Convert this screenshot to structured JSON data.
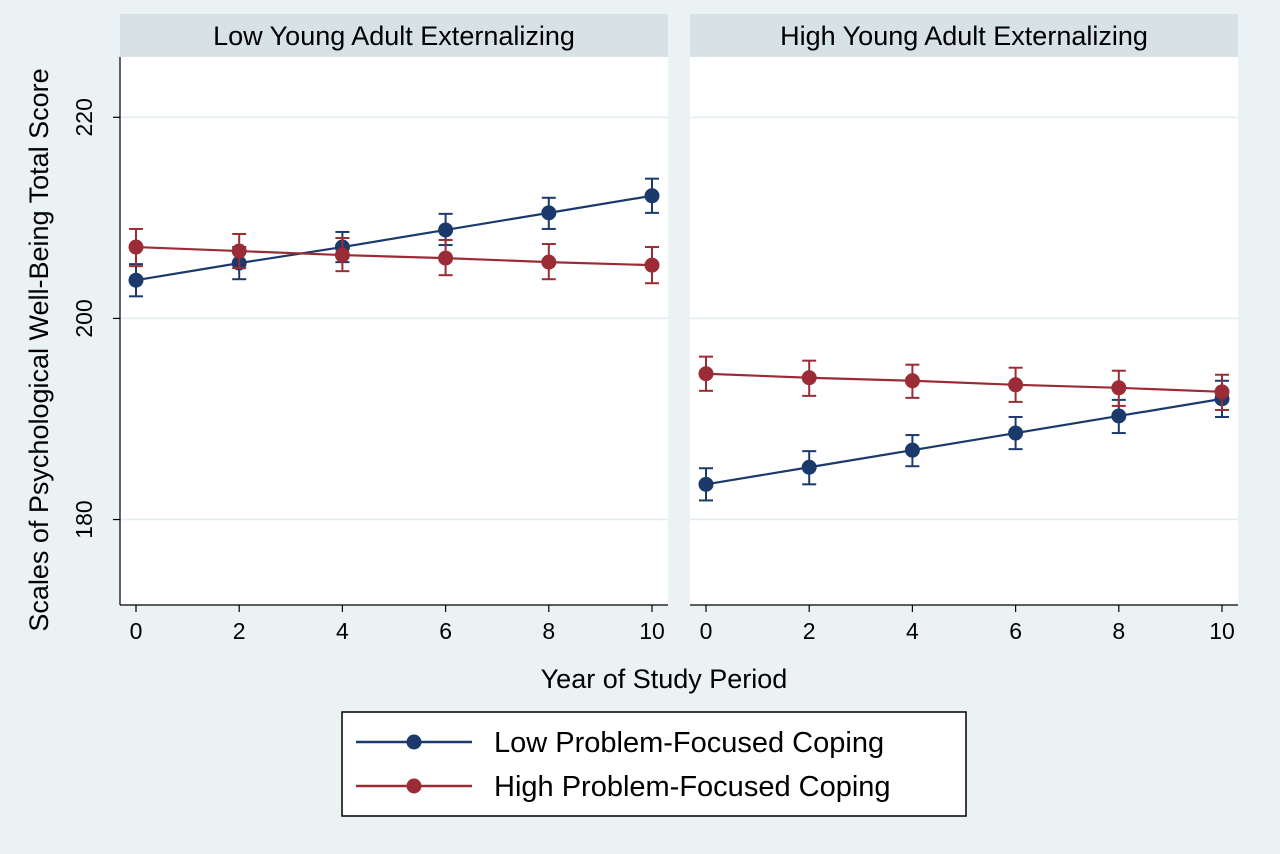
{
  "chart_data": {
    "type": "line",
    "xlabel": "Year of Study Period",
    "ylabel": "Scales of Psychological Well-Being Total Score",
    "xlim": [
      0,
      10
    ],
    "ylim": [
      171.5,
      226
    ],
    "x_ticks": [
      0,
      2,
      4,
      6,
      8,
      10
    ],
    "y_ticks": [
      180,
      200,
      220
    ],
    "grid": true,
    "legend_position": "bottom",
    "error_bars": true,
    "colors": {
      "Low Problem-Focused Coping": "#1b3a6b",
      "High Problem-Focused Coping": "#9b2c35"
    },
    "panels": [
      {
        "title": "Low Young Adult Externalizing",
        "x": [
          0,
          2,
          4,
          6,
          8,
          10
        ],
        "series": [
          {
            "name": "Low Problem-Focused Coping",
            "values": [
              203.8,
              205.5,
              207.1,
              208.8,
              210.5,
              212.2
            ],
            "ci_low": [
              202.2,
              203.9,
              205.6,
              207.3,
              208.9,
              210.5
            ],
            "ci_high": [
              205.4,
              207.1,
              208.6,
              210.4,
              212.0,
              213.9
            ]
          },
          {
            "name": "High Problem-Focused Coping",
            "values": [
              207.1,
              206.7,
              206.3,
              206.0,
              205.6,
              205.3
            ],
            "ci_low": [
              205.2,
              205.0,
              204.7,
              204.3,
              203.9,
              203.5
            ],
            "ci_high": [
              208.9,
              208.4,
              208.0,
              207.8,
              207.4,
              207.1
            ]
          }
        ]
      },
      {
        "title": "High Young Adult Externalizing",
        "x": [
          0,
          2,
          4,
          6,
          8,
          10
        ],
        "series": [
          {
            "name": "Low Problem-Focused Coping",
            "values": [
              183.5,
              185.2,
              186.9,
              188.6,
              190.3,
              192.0
            ],
            "ci_low": [
              181.9,
              183.5,
              185.3,
              187.0,
              188.6,
              190.2
            ],
            "ci_high": [
              185.1,
              186.8,
              188.4,
              190.2,
              191.9,
              193.8
            ]
          },
          {
            "name": "High Problem-Focused Coping",
            "values": [
              194.5,
              194.1,
              193.8,
              193.4,
              193.1,
              192.7
            ],
            "ci_low": [
              192.8,
              192.3,
              192.1,
              191.7,
              191.3,
              190.9
            ],
            "ci_high": [
              196.2,
              195.8,
              195.4,
              195.1,
              194.8,
              194.4
            ]
          }
        ]
      }
    ],
    "legend": [
      "Low Problem-Focused Coping",
      "High Problem-Focused Coping"
    ]
  }
}
